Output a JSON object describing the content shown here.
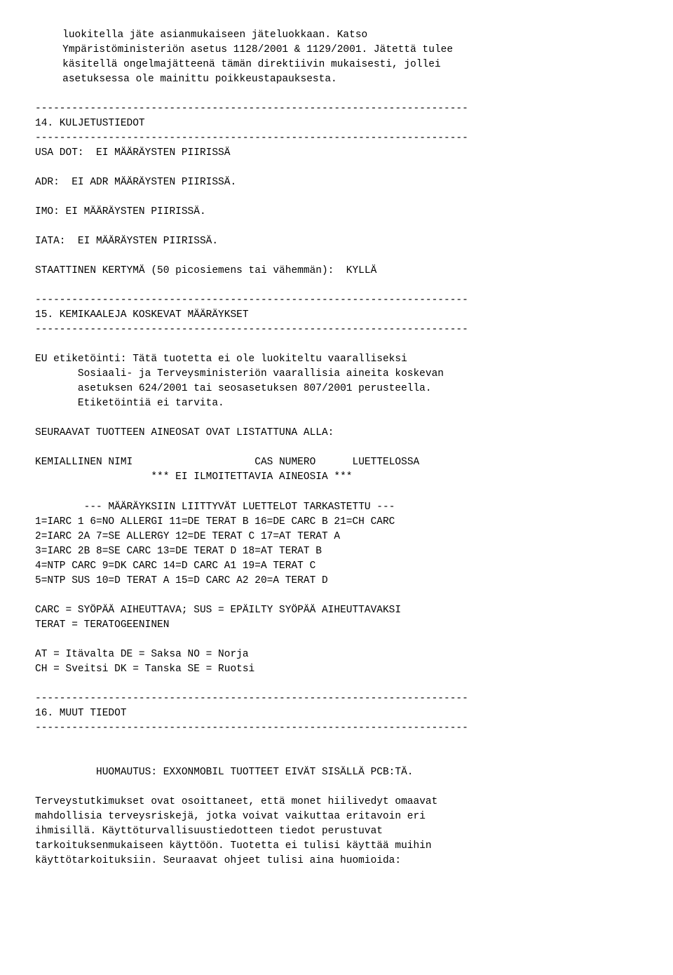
{
  "intro": {
    "line1": "luokitella jäte asianmukaiseen jäteluokkaan. Katso",
    "line2": "Ympäristöministeriön asetus 1128/2001 & 1129/2001. Jätettä tulee",
    "line3": "käsitellä ongelmajätteenä tämän direktiivin mukaisesti, jollei",
    "line4": "asetuksessa ole mainittu poikkeustapauksesta."
  },
  "separator": "-----------------------------------------------------------------------",
  "section14": {
    "title": "14. KULJETUSTIEDOT",
    "usa_dot_label": "USA DOT:",
    "usa_dot_value": "EI MÄÄRÄYSTEN PIIRISSÄ",
    "adr_label": "ADR:",
    "adr_value": "EI ADR MÄÄRÄYSTEN PIIRISSÄ.",
    "imo_label": "IMO:",
    "imo_value": "EI MÄÄRÄYSTEN PIIRISSÄ.",
    "iata_label": "IATA:",
    "iata_value": "EI MÄÄRÄYSTEN PIIRISSÄ.",
    "static_label": "STAATTINEN KERTYMÄ (50 picosiemens tai vähemmän):",
    "static_value": "KYLLÄ"
  },
  "section15": {
    "title": "15. KEMIKAALEJA KOSKEVAT MÄÄRÄYKSET",
    "eu_label_line1": "EU etiketöinti: Tätä tuotetta ei ole luokiteltu vaaralliseksi",
    "eu_label_line2": "Sosiaali- ja Terveysministeriön vaarallisia aineita koskevan",
    "eu_label_line3": "asetuksen 624/2001 tai seosasetuksen 807/2001 perusteella.",
    "eu_label_line4": "Etiketöintiä ei tarvita.",
    "components_heading": "SEURAAVAT TUOTTEEN AINEOSAT OVAT LISTATTUNA ALLA:",
    "chem_name": "KEMIALLINEN NIMI",
    "cas_number": "CAS NUMERO",
    "listed": "LUETTELOSSA",
    "no_components": "*** EI ILMOITETTAVIA AINEOSIA ***",
    "legend_header": "--- MÄÄRÄYKSIIN LIITTYVÄT LUETTELOT TARKASTETTU ---",
    "legend_rows": [
      "1=IARC 1 6=NO ALLERGI 11=DE TERAT B 16=DE CARC B 21=CH CARC",
      "2=IARC 2A 7=SE ALLERGY 12=DE TERAT C 17=AT TERAT A",
      "3=IARC 2B 8=SE CARC 13=DE TERAT D 18=AT TERAT B",
      "4=NTP CARC 9=DK CARC 14=D CARC A1 19=A TERAT C",
      "5=NTP SUS 10=D TERAT A 15=D CARC A2 20=A TERAT D"
    ],
    "carc_line": "CARC = SYÖPÄÄ AIHEUTTAVA; SUS = EPÄILTY SYÖPÄÄ AIHEUTTAVAKSI",
    "terat_line": "TERAT = TERATOGEENINEN",
    "country_line1": "AT = Itävalta DE = Saksa NO = Norja",
    "country_line2": "CH = Sveitsi DK = Tanska SE = Ruotsi"
  },
  "section16": {
    "title": "16. MUUT TIEDOT",
    "notice": "HUOMAUTUS: EXXONMOBIL TUOTTEET EIVÄT SISÄLLÄ PCB:TÄ.",
    "para_line1": "Terveystutkimukset ovat osoittaneet, että monet hiilivedyt omaavat",
    "para_line2": "mahdollisia terveysriskejä, jotka voivat vaikuttaa eritavoin eri",
    "para_line3": "ihmisillä. Käyttöturvallisuustiedotteen tiedot perustuvat",
    "para_line4": "tarkoituksenmukaiseen käyttöön. Tuotetta ei tulisi käyttää muihin",
    "para_line5": "käyttötarkoituksiin. Seuraavat ohjeet tulisi aina huomioida:"
  }
}
